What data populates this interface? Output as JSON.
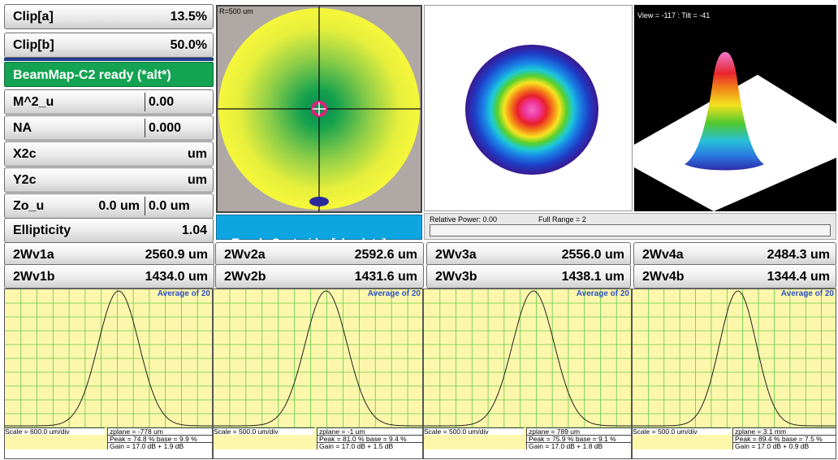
{
  "left_panel": {
    "clip_a": {
      "label": "Clip[a]",
      "value": "13.5%"
    },
    "clip_b": {
      "label": "Clip[b]",
      "value": "50.0%"
    },
    "status": "BeamMap-C2 ready (*alt*)",
    "m2u": {
      "label": "M^2_u",
      "value": "0.00"
    },
    "na": {
      "label": "NA",
      "value": "0.000"
    },
    "x2c": {
      "label": "X2c",
      "value": "um"
    },
    "y2c": {
      "label": "Y2c",
      "value": "um"
    },
    "zou": {
      "label": "Zo_u",
      "value_a": "0.0 um",
      "value_b": "0.0 um"
    },
    "ellipticity": {
      "label": "Ellipticity",
      "value": "1.04"
    }
  },
  "beam_map": {
    "radius_label": "R=500 um",
    "toggle_label": "Toggle Centroid:   [absolute]"
  },
  "view_3d": {
    "label": "View = -117 : Tilt = -41"
  },
  "power_bar": {
    "relative_power": "Relative Power: 0.00",
    "full_range": "Full Range = 2"
  },
  "width_rows": [
    {
      "a_label": "2Wv1a",
      "a_value": "2560.9 um",
      "b_label": "2Wv1b",
      "b_value": "1434.0 um"
    },
    {
      "a_label": "2Wv2a",
      "a_value": "2592.6 um",
      "b_label": "2Wv2b",
      "b_value": "1431.6 um"
    },
    {
      "a_label": "2Wv3a",
      "a_value": "2556.0 um",
      "b_label": "2Wv3b",
      "b_value": "1438.1 um"
    },
    {
      "a_label": "2Wv4a",
      "a_value": "2484.3 um",
      "b_label": "2Wv4b",
      "b_value": "1344.4 um"
    }
  ],
  "plots": [
    {
      "average": "Average of 20",
      "scale": "Scale = 600.0 um/div",
      "zplane": "zplane = -778 um",
      "peak": "Peak = 74.8 %  base = 9.9 %",
      "gain": "Gain = 17.0 dB + 1.9 dB",
      "center": 0.545,
      "sigma": 0.098
    },
    {
      "average": "Average of 20",
      "scale": "Scale = 500.0 um/div",
      "zplane": "zplane = -1 um",
      "peak": "Peak = 81.0 %  base = 9.4 %",
      "gain": "Gain = 17.0 dB + 1.5 dB",
      "center": 0.535,
      "sigma": 0.1
    },
    {
      "average": "Average of 20",
      "scale": "Scale = 500.0 um/div",
      "zplane": "zplane = 789 um",
      "peak": "Peak = 75.9 %  base = 9.1 %",
      "gain": "Gain = 17.0 dB + 1.8 dB",
      "center": 0.525,
      "sigma": 0.1
    },
    {
      "average": "Average of 20",
      "scale": "Scale = 500.0 um/div",
      "zplane": "zplane = 3.1 mm",
      "peak": "Peak = 89.4 %  base = 7.5 %",
      "gain": "Gain = 17.0 dB + 0.9 dB",
      "center": 0.515,
      "sigma": 0.09
    }
  ],
  "colors": {
    "accent_green": "#13a352",
    "toggle_blue": "#0ea6e0",
    "plot_bg": "#fdf7ac",
    "grid": "#64c84a"
  }
}
